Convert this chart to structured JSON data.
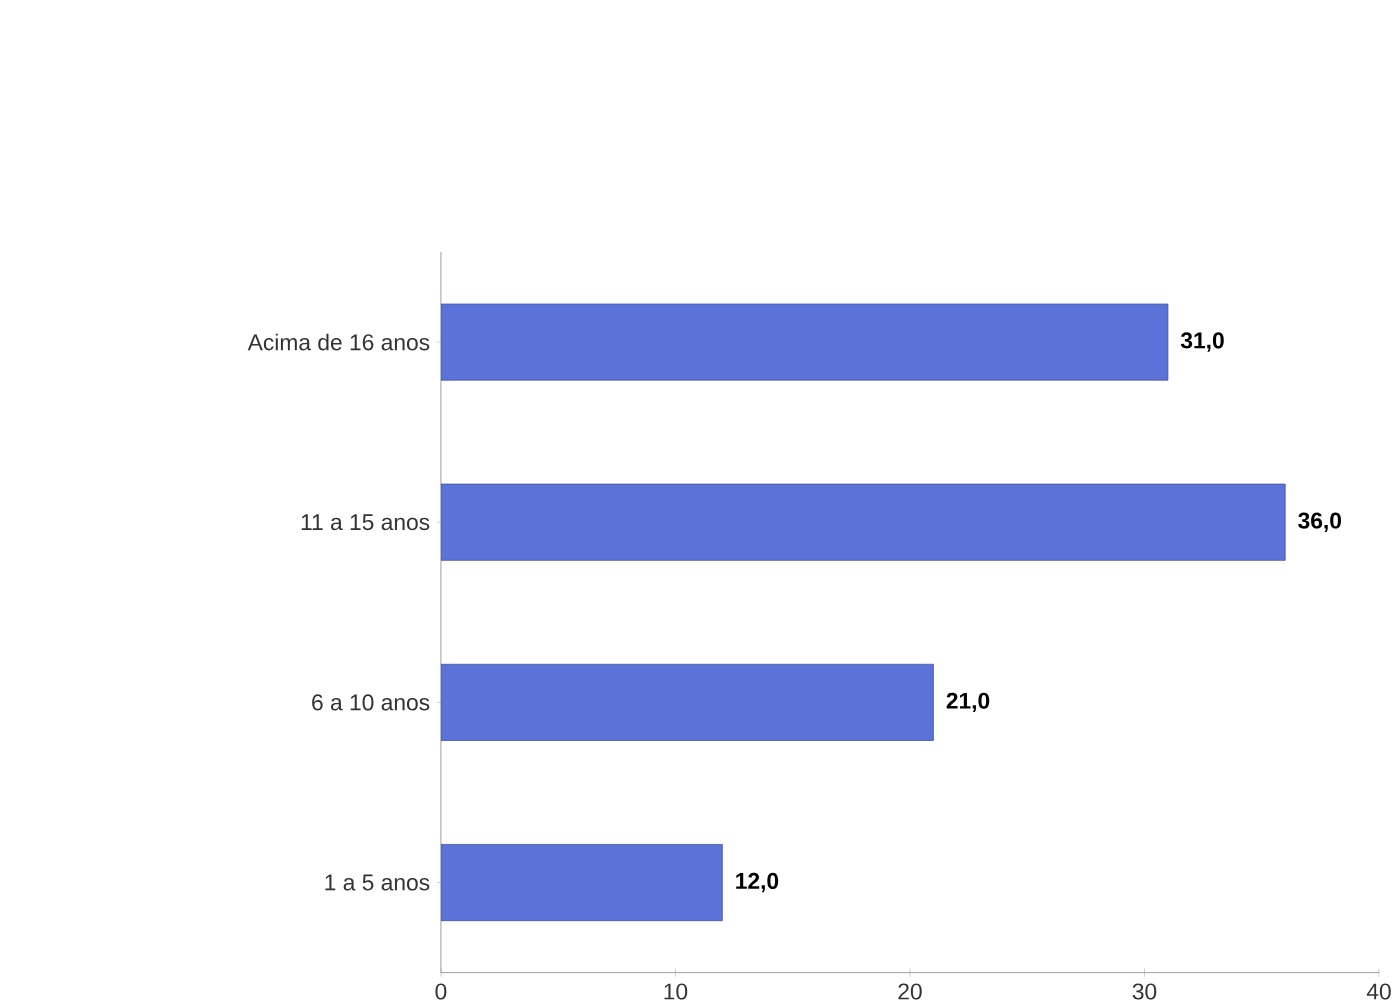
{
  "chart_data": {
    "type": "bar",
    "orientation": "horizontal",
    "categories": [
      "Acima de 16 anos",
      "11 a 15 anos",
      "6 a 10 anos",
      "1 a 5 anos"
    ],
    "values": [
      31,
      36,
      21,
      12
    ],
    "value_labels": [
      "31,0",
      "36,0",
      "21,0",
      "12,0"
    ],
    "color": "#5b72d8",
    "xlim": [
      0,
      40
    ],
    "xticks": [
      0,
      10,
      20,
      30,
      40
    ],
    "grid": false
  }
}
